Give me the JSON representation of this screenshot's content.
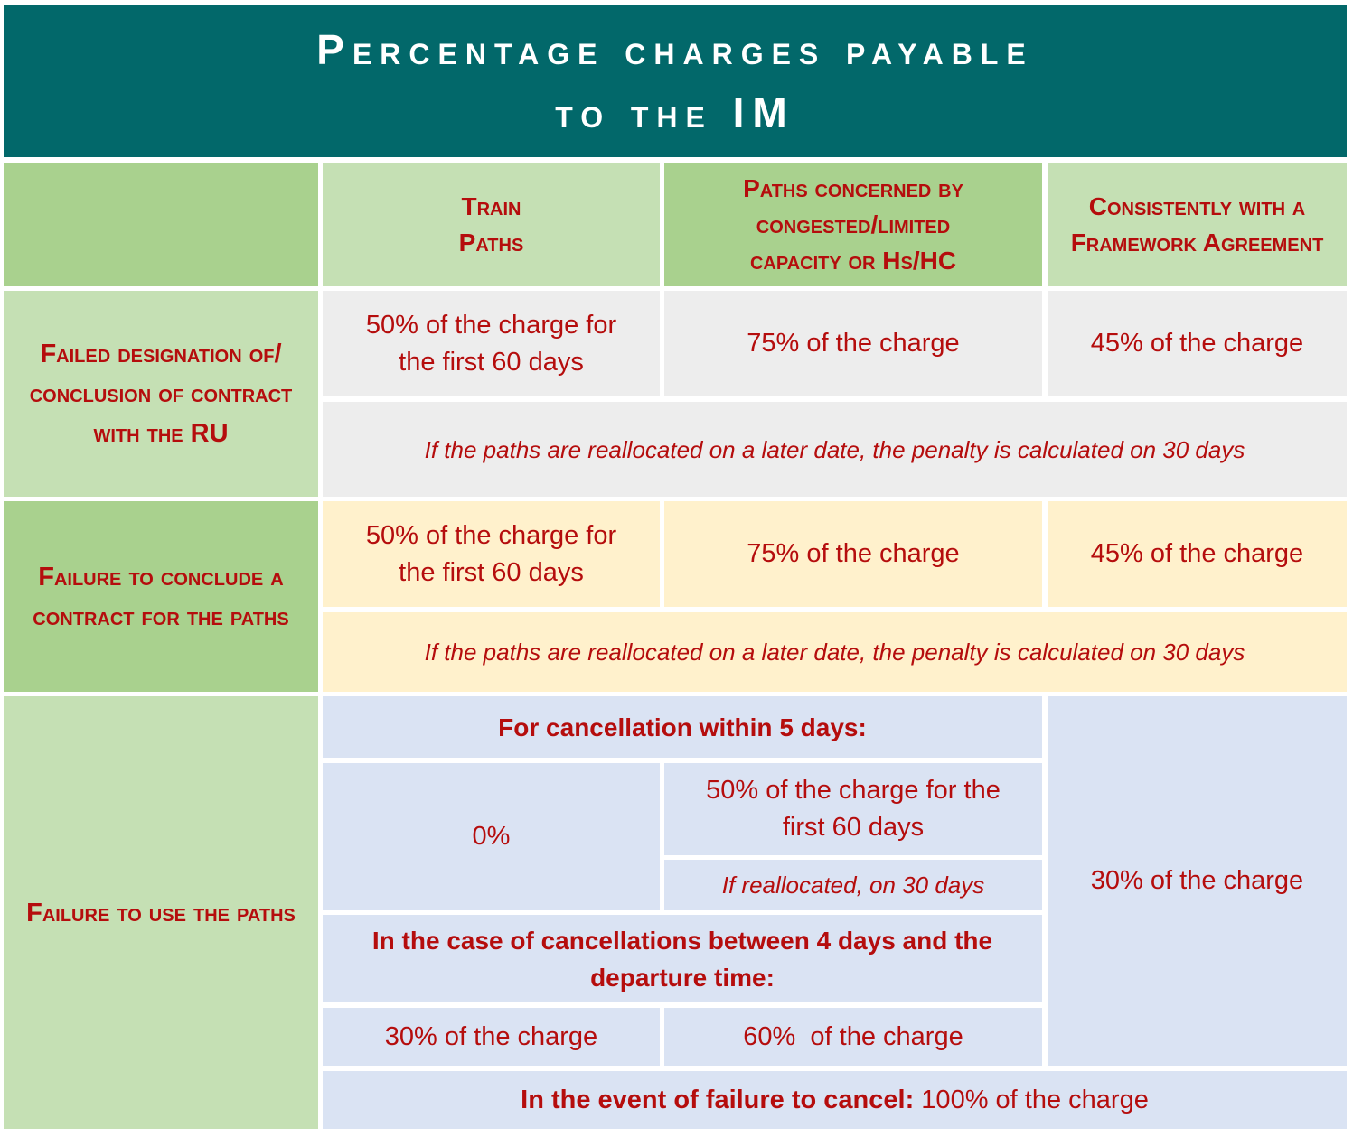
{
  "title": {
    "line1": "Percentage charges payable",
    "line2": "to the IM"
  },
  "columns": {
    "train_paths": "Train Paths",
    "congested": "Paths concerned by congested/limited capacity or Hs/HC",
    "framework": "Consistently with a Framework Agreement"
  },
  "rows": {
    "failed_designation": {
      "label": "Failed designation of/ conclusion of contract with the RU",
      "train_paths": "50% of the charge for the first 60 days",
      "congested": "75% of the charge",
      "framework": "45% of the charge",
      "note": "If the paths are reallocated on a later date, the penalty is calculated on 30 days"
    },
    "failure_conclude": {
      "label": "Failure to conclude a contract for the paths",
      "train_paths": "50% of the charge for the first 60 days",
      "congested": "75% of the charge",
      "framework": "45% of the charge",
      "note": "If the paths are reallocated on a later date, the penalty is calculated on 30 days"
    },
    "failure_use": {
      "label": "Failure to use the paths",
      "within5_heading": "For cancellation within 5 days:",
      "within5_train": "0%",
      "within5_congested": "50% of the charge for the first 60 days",
      "within5_congested_note": "If reallocated, on 30 days",
      "between_heading": "In the case of cancellations between 4 days and the departure time:",
      "between_train": "30% of the charge",
      "between_congested": "60%  of the charge",
      "framework": "30% of the charge",
      "fail_cancel_bold": "In the event of failure to cancel:",
      "fail_cancel_value": " 100% of the charge"
    }
  }
}
